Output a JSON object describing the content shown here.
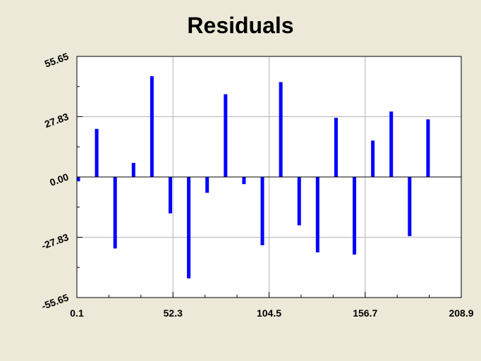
{
  "chart_data": {
    "type": "bar",
    "title": "Residuals",
    "xlabel": "",
    "ylabel": "",
    "xlim": [
      0.1,
      208.9
    ],
    "ylim": [
      -55.65,
      55.65
    ],
    "x_ticks": [
      "0.1",
      "52.3",
      "104.5",
      "156.7",
      "208.9"
    ],
    "y_ticks": [
      "55.65",
      "27.83",
      "0.00",
      "-27.83",
      "-55.65"
    ],
    "grid": true,
    "bar_color": "#0000ff",
    "x": [
      0.1,
      10.1,
      20.1,
      30.1,
      40.1,
      50.1,
      60.1,
      70.1,
      80.1,
      90.1,
      100.1,
      110.1,
      120.1,
      130.1,
      140.1,
      150.1,
      160.1,
      170.1,
      180.1,
      190.1
    ],
    "values": [
      -2.0,
      22.2,
      -33.0,
      6.5,
      46.5,
      -16.8,
      -46.8,
      -7.3,
      38.2,
      -3.3,
      -31.5,
      43.8,
      -22.3,
      -34.8,
      27.3,
      -35.8,
      16.8,
      30.2,
      -27.3,
      26.6
    ]
  }
}
